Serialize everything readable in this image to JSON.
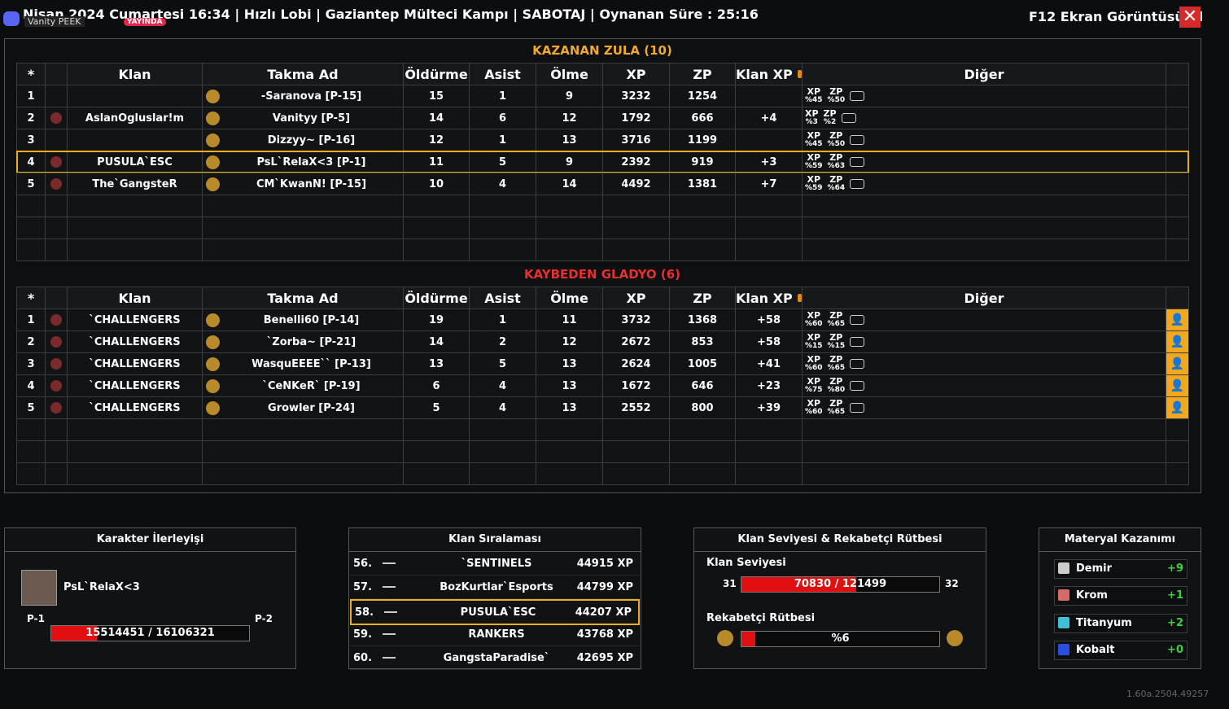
{
  "header": {
    "title": "Nisan 2024 Cumartesi 16:34 | Hızlı Lobi | Gaziantep Mülteci Kampı | SABOTAJ | Oynanan Süre : 25:16",
    "overlay": "Vanity PEEK",
    "live": "YAYINDA",
    "screenshot": "F12 Ekran Görüntüsü Al"
  },
  "columns": [
    "*",
    "Klan",
    "Takma Ad",
    "Öldürme",
    "Asist",
    "Ölme",
    "XP",
    "ZP",
    "Klan XP",
    "Diğer"
  ],
  "boost_labels": [
    "XP",
    "ZP"
  ],
  "winners": {
    "title": "KAZANAN ZULA (10)",
    "rows": [
      [
        1,
        null,
        "-Saranova [P-15]",
        15,
        1,
        9,
        3232,
        1254,
        null,
        "%45",
        "%50"
      ],
      [
        2,
        "AslanOgluslar!m",
        "Vanityy [P-5]",
        14,
        6,
        12,
        1792,
        666,
        "+4",
        "%3",
        "%2"
      ],
      [
        3,
        null,
        "Dizzyy~ [P-16]",
        12,
        1,
        13,
        3716,
        1199,
        null,
        "%45",
        "%50"
      ],
      [
        4,
        "PUSULA`ESC",
        "PsL`RelaX<3 [P-1]",
        11,
        5,
        9,
        2392,
        919,
        "+3",
        "%59",
        "%63"
      ],
      [
        5,
        "The`GangsteR",
        "CM`KwanN! [P-15]",
        10,
        4,
        14,
        4492,
        1381,
        "+7",
        "%59",
        "%64"
      ]
    ]
  },
  "losers": {
    "title": "KAYBEDEN GLADYO (6)",
    "rows": [
      [
        1,
        "`CHALLENGERS",
        "Benelli60 [P-14]",
        19,
        1,
        11,
        3732,
        1368,
        "+58",
        "%60",
        "%65"
      ],
      [
        2,
        "`CHALLENGERS",
        "`Zorba~ [P-21]",
        14,
        2,
        12,
        2672,
        853,
        "+58",
        "%15",
        "%15"
      ],
      [
        3,
        "`CHALLENGERS",
        "WasquEEEE`` [P-13]",
        13,
        5,
        13,
        2624,
        1005,
        "+41",
        "%60",
        "%65"
      ],
      [
        4,
        "`CHALLENGERS",
        "`CeNKeR` [P-19]",
        6,
        4,
        13,
        1672,
        646,
        "+23",
        "%75",
        "%80"
      ],
      [
        5,
        "`CHALLENGERS",
        "Growler [P-24]",
        5,
        4,
        13,
        2552,
        800,
        "+39",
        "%60",
        "%65"
      ]
    ]
  },
  "character": {
    "title": "Karakter İlerleyişi",
    "name": "PsL`RelaX<3",
    "level_from": "P-1",
    "level_to": "P-2",
    "progress": "15514451 / 16106321"
  },
  "clan_ranking": {
    "title": "Klan Sıralaması",
    "rows": [
      [
        "56.",
        "`SENTINELS",
        "44915 XP"
      ],
      [
        "57.",
        "BozKurtlar`Esports",
        "44799 XP"
      ],
      [
        "58.",
        "PUSULA`ESC",
        "44207 XP"
      ],
      [
        "59.",
        "RANKERS",
        "43768 XP"
      ],
      [
        "60.",
        "GangstaParadise`",
        "42695 XP"
      ]
    ]
  },
  "clan_level": {
    "title": "Klan Seviyesi & Rekabetçi Rütbesi",
    "level_label": "Klan Seviyesi",
    "level": 31,
    "next_level": 32,
    "progress": "70830 / 121499",
    "rank_label": "Rekabetçi Rütbesi",
    "rank_progress": "%6"
  },
  "materials": {
    "title": "Materyal Kazanımı",
    "rows": [
      [
        "Demir",
        "+9"
      ],
      [
        "Krom",
        "+1"
      ],
      [
        "Titanyum",
        "+2"
      ],
      [
        "Kobalt",
        "+0"
      ]
    ]
  },
  "version": "1.60a.2504.49257"
}
